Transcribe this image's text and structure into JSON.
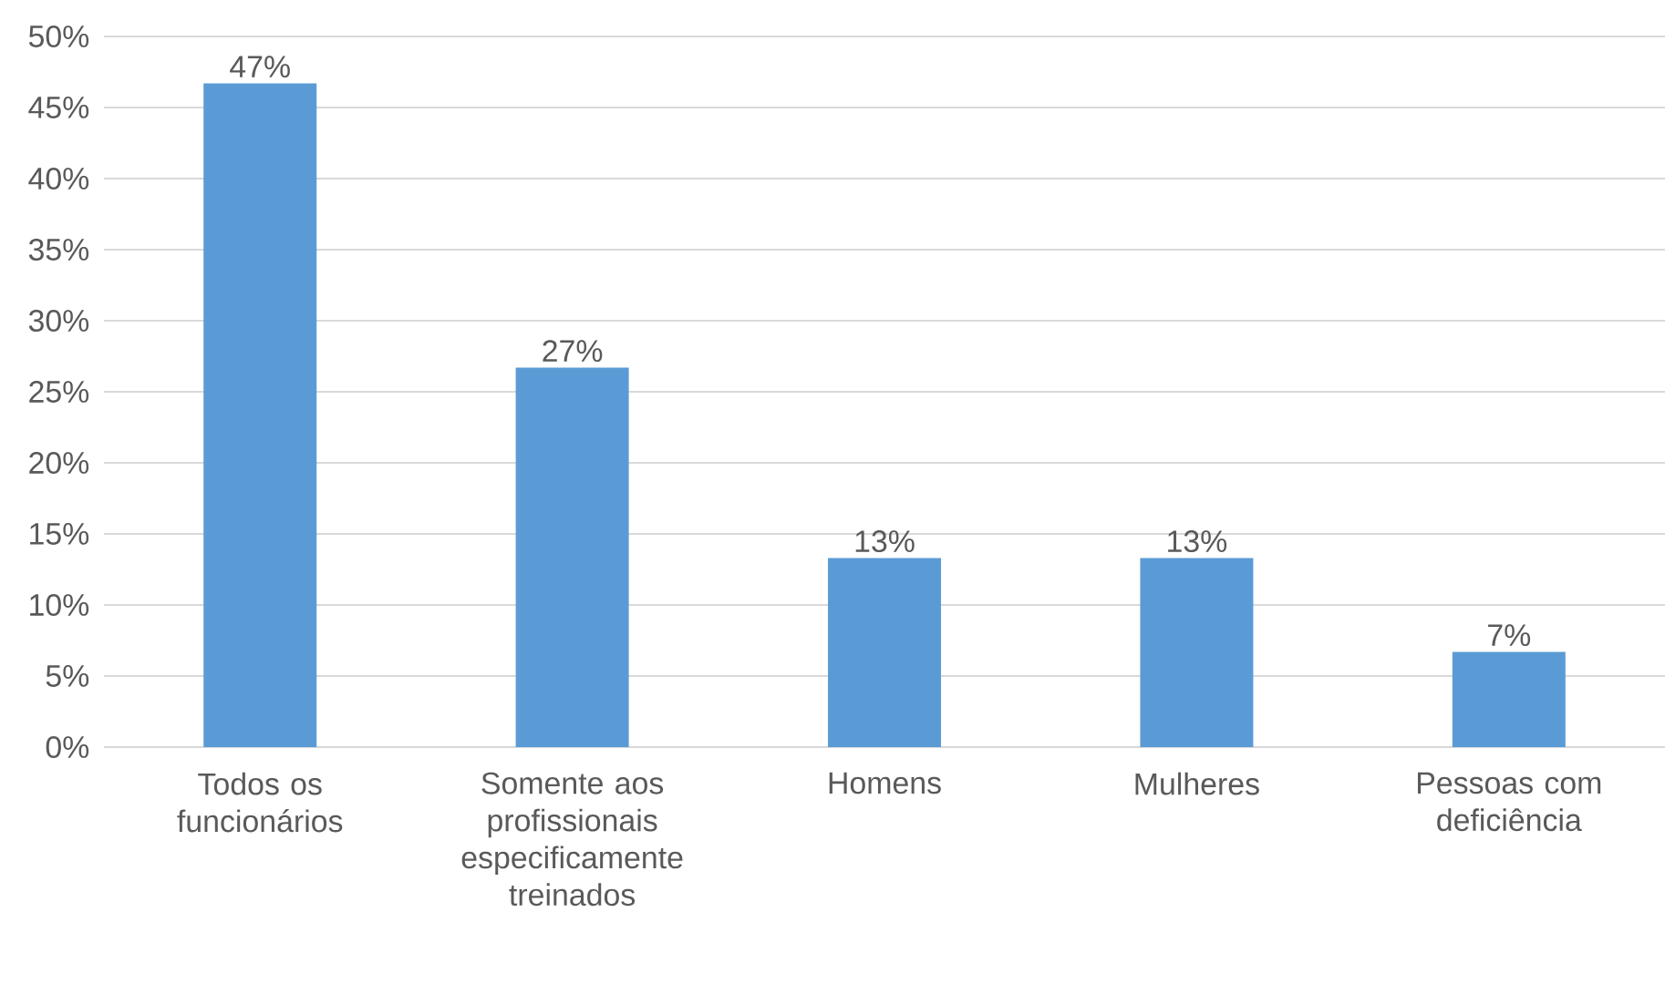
{
  "chart_data": {
    "type": "bar",
    "categories": [
      "Todos os funcionários",
      "Somente aos profissionais especificamente treinados",
      "Homens",
      "Mulheres",
      "Pessoas com deficiência"
    ],
    "values": [
      46.7,
      26.7,
      13.3,
      13.3,
      6.7
    ],
    "value_labels": [
      "47%",
      "27%",
      "13%",
      "13%",
      "7%"
    ],
    "color": "#5b9bd5",
    "ylim": [
      0,
      50
    ],
    "yticks": [
      {
        "value": 0,
        "label": "0%"
      },
      {
        "value": 5,
        "label": "5%"
      },
      {
        "value": 10,
        "label": "10%"
      },
      {
        "value": 15,
        "label": "15%"
      },
      {
        "value": 20,
        "label": "20%"
      },
      {
        "value": 25,
        "label": "25%"
      },
      {
        "value": 30,
        "label": "30%"
      },
      {
        "value": 35,
        "label": "35%"
      },
      {
        "value": 40,
        "label": "40%"
      },
      {
        "value": 45,
        "label": "45%"
      },
      {
        "value": 50,
        "label": "50%"
      }
    ],
    "grid": "y"
  }
}
